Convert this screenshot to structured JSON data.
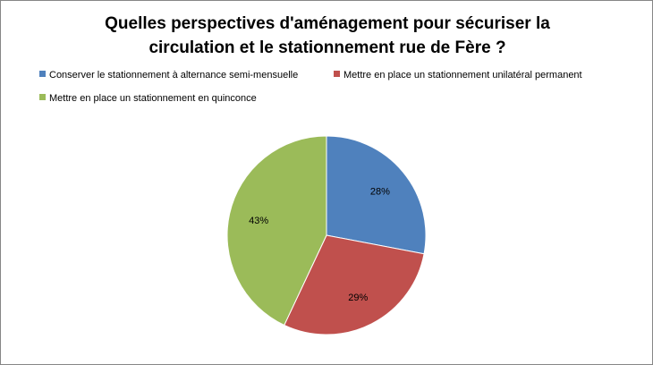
{
  "chart_data": {
    "type": "pie",
    "title_line1": "Quelles perspectives d'aménagement pour sécuriser la",
    "title_line2": "circulation  et le stationnement  rue de Fère ?",
    "legend_position": "top",
    "slices": [
      {
        "label": "Conserver le stationnement à alternance semi-mensuelle",
        "value": 28,
        "display": "28%",
        "color": "#4F81BD"
      },
      {
        "label": "Mettre en place un stationnement unilatéral permanent",
        "value": 29,
        "display": "29%",
        "color": "#C0504D"
      },
      {
        "label": "Mettre en place un stationnement en quinconce",
        "value": 43,
        "display": "43%",
        "color": "#9BBB59"
      }
    ]
  }
}
